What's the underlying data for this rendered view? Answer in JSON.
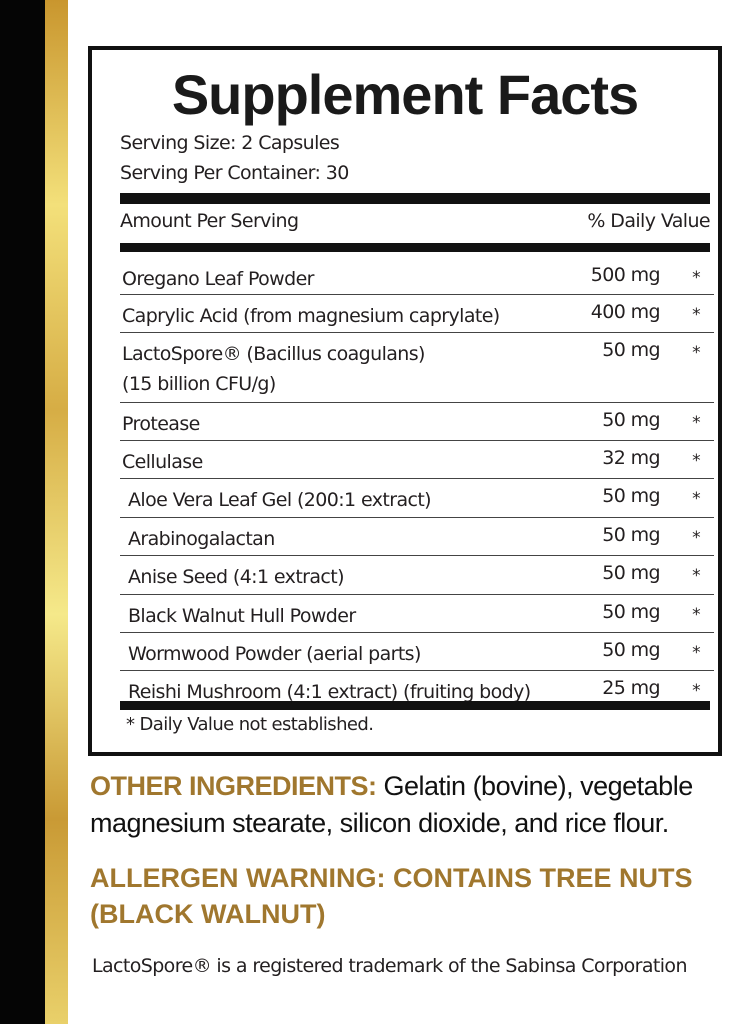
{
  "colors": {
    "accent_gold": "#a0772e",
    "strip_black": "#050505",
    "strip_gold": "#e9d06a"
  },
  "facts": {
    "title": "Supplement Facts",
    "serving_size": "Serving Size: 2 Capsules",
    "servings_per_container": "Serving Per Container: 30",
    "header_amount": "Amount Per Serving",
    "header_dv": "% Daily Value",
    "rows": [
      {
        "name": "Oregano Leaf Powder",
        "amount": "500 mg",
        "dv": "*"
      },
      {
        "name": "Caprylic Acid (from magnesium caprylate)",
        "amount": "400 mg",
        "dv": "*"
      },
      {
        "name": "LactoSpore® (Bacillus coagulans)",
        "name2": "(15 billion CFU/g)",
        "amount": "50 mg",
        "dv": "*"
      },
      {
        "name": "Protease",
        "amount": "50 mg",
        "dv": "*"
      },
      {
        "name": "Cellulase",
        "amount": "32 mg",
        "dv": "*"
      },
      {
        "name": "Aloe Vera Leaf Gel (200:1 extract)",
        "amount": "50 mg",
        "dv": "*"
      },
      {
        "name": "Arabinogalactan",
        "amount": "50 mg",
        "dv": "*"
      },
      {
        "name": "Anise Seed (4:1 extract)",
        "amount": "50 mg",
        "dv": "*"
      },
      {
        "name": "Black Walnut Hull Powder",
        "amount": "50 mg",
        "dv": "*"
      },
      {
        "name": "Wormwood Powder (aerial parts)",
        "amount": "50 mg",
        "dv": "*"
      },
      {
        "name": "Reishi Mushroom (4:1 extract) (fruiting body)",
        "amount": "25 mg",
        "dv": "*"
      }
    ],
    "footnote": "* Daily Value not established."
  },
  "other_ingredients": {
    "label": "OTHER INGREDIENTS:",
    "text": " Gelatin (bovine), vegetable magnesium stearate, silicon dioxide, and rice flour."
  },
  "allergen": "ALLERGEN WARNING: CONTAINS TREE NUTS (BLACK WALNUT)",
  "trademark": "LactoSpore® is a registered trademark of the Sabinsa Corporation"
}
